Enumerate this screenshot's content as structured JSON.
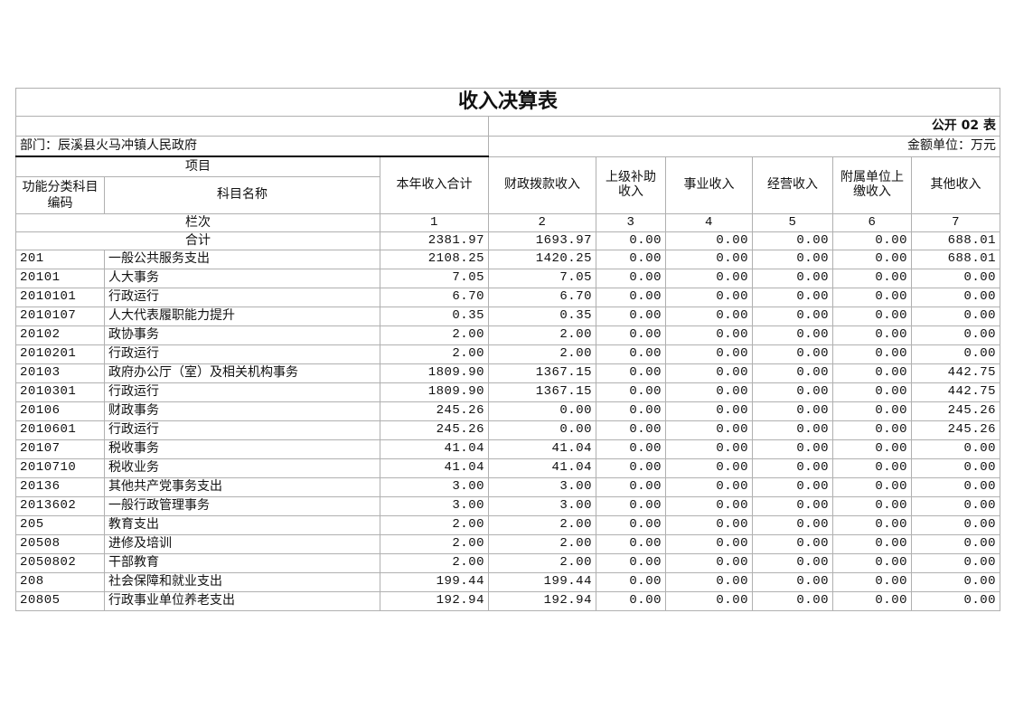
{
  "title": "收入决算表",
  "form_no": "公开 02 表",
  "department": "部门：辰溪县火马冲镇人民政府",
  "unit": "金额单位：万元",
  "headers": {
    "item": "项目",
    "code": "功能分类科目编码",
    "name": "科目名称",
    "cols": [
      "本年收入合计",
      "财政拨款收入",
      "上级补助收入",
      "事业收入",
      "经营收入",
      "附属单位上缴收入",
      "其他收入"
    ],
    "index_label": "栏次",
    "index": [
      "1",
      "2",
      "3",
      "4",
      "5",
      "6",
      "7"
    ]
  },
  "total": {
    "label": "合计",
    "values": [
      "2381.97",
      "1693.97",
      "0.00",
      "0.00",
      "0.00",
      "0.00",
      "688.01"
    ]
  },
  "rows": [
    {
      "code": "201",
      "name": "一般公共服务支出",
      "values": [
        "2108.25",
        "1420.25",
        "0.00",
        "0.00",
        "0.00",
        "0.00",
        "688.01"
      ]
    },
    {
      "code": "20101",
      "name": "人大事务",
      "values": [
        "7.05",
        "7.05",
        "0.00",
        "0.00",
        "0.00",
        "0.00",
        "0.00"
      ]
    },
    {
      "code": "2010101",
      "name": "行政运行",
      "values": [
        "6.70",
        "6.70",
        "0.00",
        "0.00",
        "0.00",
        "0.00",
        "0.00"
      ]
    },
    {
      "code": "2010107",
      "name": "人大代表履职能力提升",
      "values": [
        "0.35",
        "0.35",
        "0.00",
        "0.00",
        "0.00",
        "0.00",
        "0.00"
      ]
    },
    {
      "code": "20102",
      "name": "政协事务",
      "values": [
        "2.00",
        "2.00",
        "0.00",
        "0.00",
        "0.00",
        "0.00",
        "0.00"
      ]
    },
    {
      "code": "2010201",
      "name": "行政运行",
      "values": [
        "2.00",
        "2.00",
        "0.00",
        "0.00",
        "0.00",
        "0.00",
        "0.00"
      ]
    },
    {
      "code": "20103",
      "name": "政府办公厅（室）及相关机构事务",
      "values": [
        "1809.90",
        "1367.15",
        "0.00",
        "0.00",
        "0.00",
        "0.00",
        "442.75"
      ]
    },
    {
      "code": "2010301",
      "name": "行政运行",
      "values": [
        "1809.90",
        "1367.15",
        "0.00",
        "0.00",
        "0.00",
        "0.00",
        "442.75"
      ]
    },
    {
      "code": "20106",
      "name": "财政事务",
      "values": [
        "245.26",
        "0.00",
        "0.00",
        "0.00",
        "0.00",
        "0.00",
        "245.26"
      ]
    },
    {
      "code": "2010601",
      "name": "行政运行",
      "values": [
        "245.26",
        "0.00",
        "0.00",
        "0.00",
        "0.00",
        "0.00",
        "245.26"
      ]
    },
    {
      "code": "20107",
      "name": "税收事务",
      "values": [
        "41.04",
        "41.04",
        "0.00",
        "0.00",
        "0.00",
        "0.00",
        "0.00"
      ]
    },
    {
      "code": "2010710",
      "name": "税收业务",
      "values": [
        "41.04",
        "41.04",
        "0.00",
        "0.00",
        "0.00",
        "0.00",
        "0.00"
      ]
    },
    {
      "code": "20136",
      "name": "其他共产党事务支出",
      "values": [
        "3.00",
        "3.00",
        "0.00",
        "0.00",
        "0.00",
        "0.00",
        "0.00"
      ]
    },
    {
      "code": "2013602",
      "name": "一般行政管理事务",
      "values": [
        "3.00",
        "3.00",
        "0.00",
        "0.00",
        "0.00",
        "0.00",
        "0.00"
      ]
    },
    {
      "code": "205",
      "name": "教育支出",
      "values": [
        "2.00",
        "2.00",
        "0.00",
        "0.00",
        "0.00",
        "0.00",
        "0.00"
      ]
    },
    {
      "code": "20508",
      "name": "进修及培训",
      "values": [
        "2.00",
        "2.00",
        "0.00",
        "0.00",
        "0.00",
        "0.00",
        "0.00"
      ]
    },
    {
      "code": "2050802",
      "name": "干部教育",
      "values": [
        "2.00",
        "2.00",
        "0.00",
        "0.00",
        "0.00",
        "0.00",
        "0.00"
      ]
    },
    {
      "code": "208",
      "name": "社会保障和就业支出",
      "values": [
        "199.44",
        "199.44",
        "0.00",
        "0.00",
        "0.00",
        "0.00",
        "0.00"
      ]
    },
    {
      "code": "20805",
      "name": "行政事业单位养老支出",
      "values": [
        "192.94",
        "192.94",
        "0.00",
        "0.00",
        "0.00",
        "0.00",
        "0.00"
      ]
    }
  ]
}
